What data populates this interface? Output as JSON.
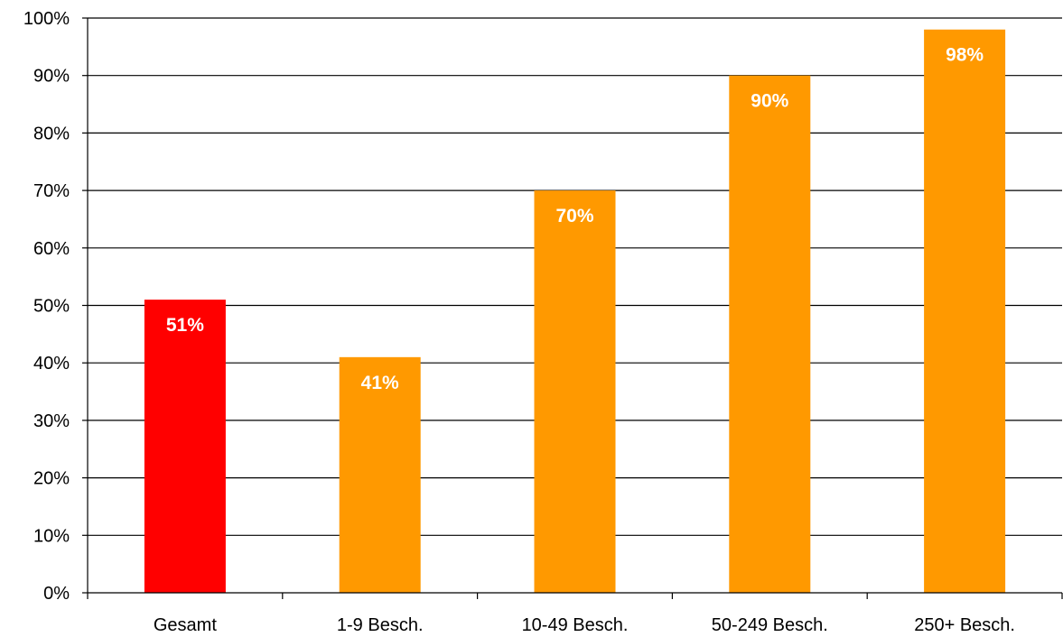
{
  "chart_data": {
    "type": "bar",
    "categories": [
      "Gesamt",
      "1-9 Besch.",
      "10-49 Besch.",
      "50-249 Besch.",
      "250+ Besch."
    ],
    "values": [
      51,
      41,
      70,
      90,
      98
    ],
    "data_labels": [
      "51%",
      "41%",
      "70%",
      "90%",
      "98%"
    ],
    "bar_colors": [
      "#ff0000",
      "#ff9900",
      "#ff9900",
      "#ff9900",
      "#ff9900"
    ],
    "ylim": [
      0,
      100
    ],
    "y_ticks": [
      0,
      10,
      20,
      30,
      40,
      50,
      60,
      70,
      80,
      90,
      100
    ],
    "y_tick_labels": [
      "0%",
      "10%",
      "20%",
      "30%",
      "40%",
      "50%",
      "60%",
      "70%",
      "80%",
      "90%",
      "100%"
    ],
    "grid": true,
    "title": "",
    "xlabel": "",
    "ylabel": ""
  }
}
